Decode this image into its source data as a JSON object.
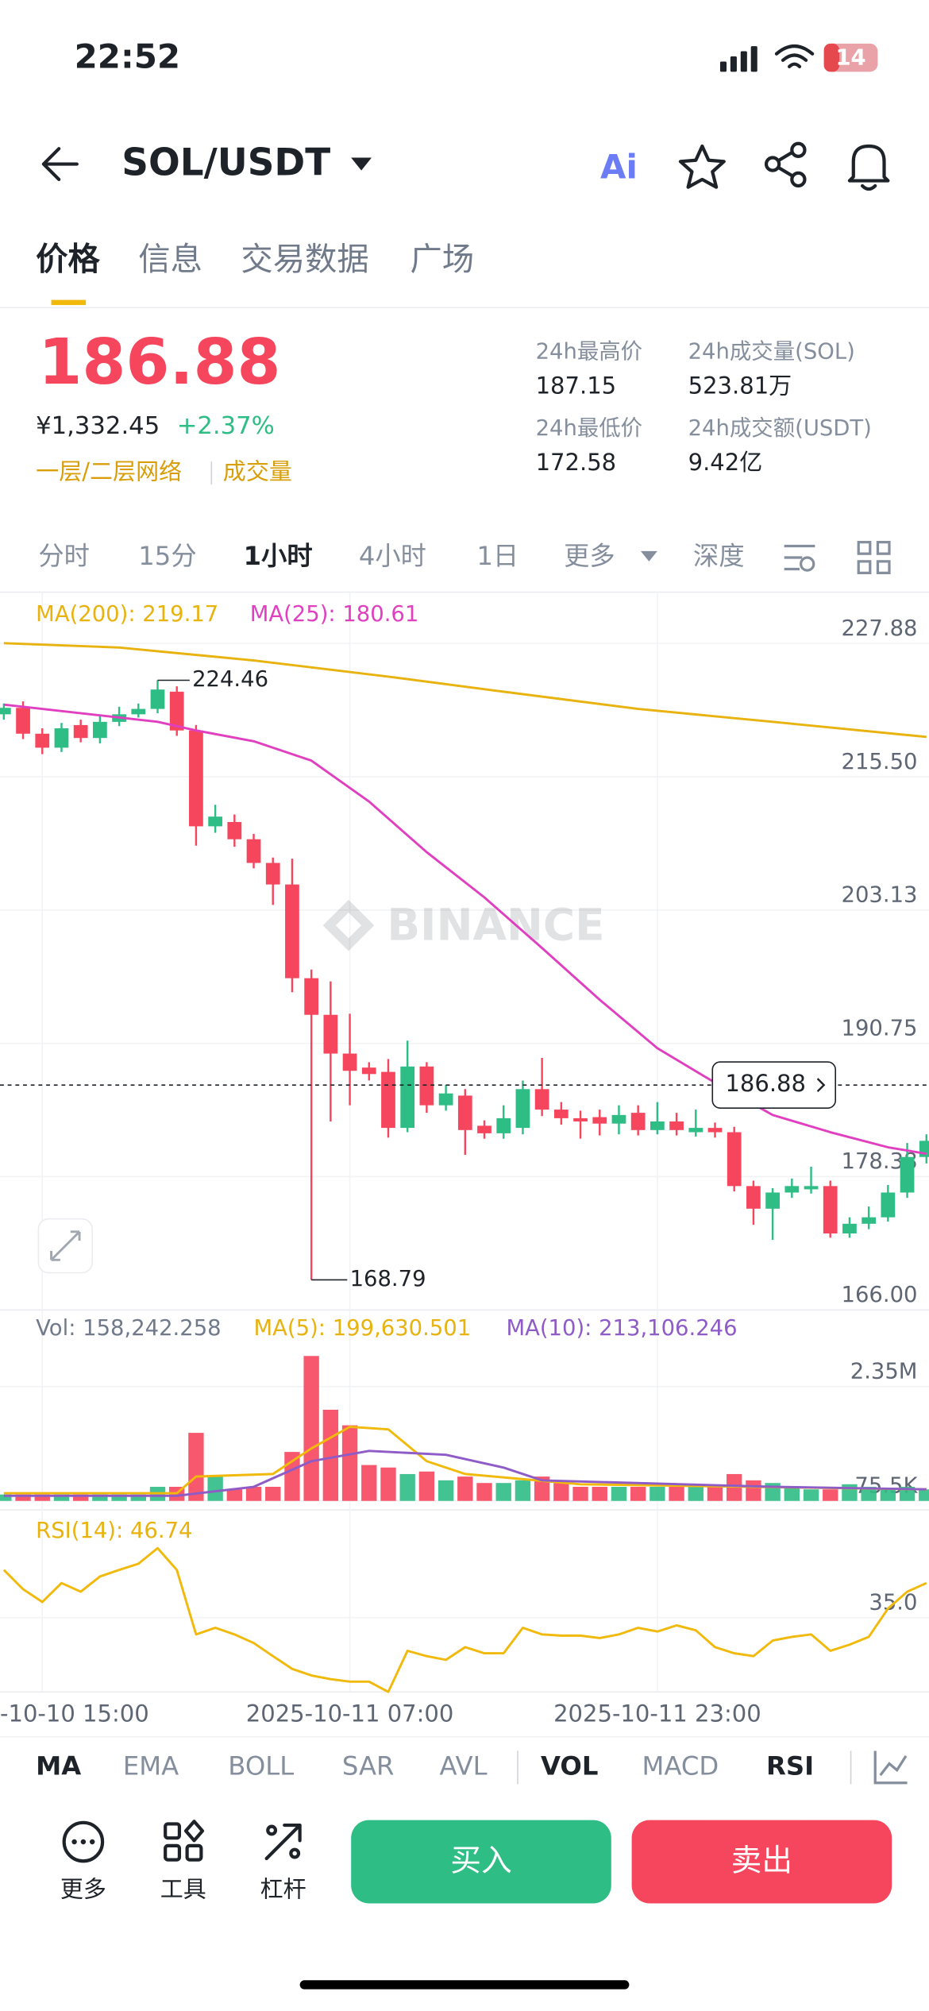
{
  "status_bar": {
    "time": "22:52",
    "battery": "14"
  },
  "nav": {
    "pair": "SOL/USDT"
  },
  "tabs": [
    "价格",
    "信息",
    "交易数据",
    "广场"
  ],
  "ticker": {
    "price": "186.88",
    "cny": "¥1,332.45",
    "change": "+2.37%",
    "tag1": "一层/二层网络",
    "tag2": "成交量",
    "stats": [
      {
        "label": "24h最高价",
        "value": "187.15"
      },
      {
        "label": "24h成交量(SOL)",
        "value": "523.81万"
      },
      {
        "label": "24h最低价",
        "value": "172.58"
      },
      {
        "label": "24h成交额(USDT)",
        "value": "9.42亿"
      }
    ]
  },
  "intervals": [
    "分时",
    "15分",
    "1小时",
    "4小时",
    "1日",
    "更多",
    "深度"
  ],
  "chart_data": {
    "type": "candlestick",
    "watermark": "BINANCE",
    "legend": {
      "ma200": "MA(200): 219.17",
      "ma25": "MA(25): 180.61",
      "vol": "Vol: 158,242.258",
      "vma5": "MA(5): 199,630.501",
      "vma10": "MA(10): 213,106.246",
      "rsi": "RSI(14): 46.74"
    },
    "current_price": 186.88,
    "ylim": [
      166,
      232.64
    ],
    "yticks": [
      227.88,
      {
        "value": 215.5,
        "label": "215.50"
      },
      203.13,
      190.75,
      178.38,
      {
        "value": 166,
        "label": "166.00"
      }
    ],
    "xticks": [
      {
        "value": 2,
        "label": "-10-10 15:00"
      },
      {
        "value": 18,
        "label": "2025-10-11 07:00"
      },
      {
        "value": 34,
        "label": "2025-10-11 23:00"
      }
    ],
    "up_color": "#2ebd85",
    "down_color": "#f6465d",
    "candles": [
      [
        221.3,
        222.3,
        220.8,
        221.9
      ],
      [
        221.9,
        222.5,
        219.0,
        219.5
      ],
      [
        219.5,
        220.0,
        217.6,
        218.2
      ],
      [
        218.2,
        220.5,
        217.8,
        220.0
      ],
      [
        220.3,
        220.8,
        218.7,
        219.1
      ],
      [
        219.1,
        221.3,
        218.6,
        220.6
      ],
      [
        220.6,
        222.0,
        220.2,
        221.3
      ],
      [
        221.3,
        222.3,
        221.0,
        221.8
      ],
      [
        221.8,
        224.46,
        221.4,
        223.6
      ],
      [
        223.4,
        223.9,
        219.3,
        219.8
      ],
      [
        219.8,
        220.3,
        209.1,
        210.9
      ],
      [
        210.9,
        212.9,
        210.3,
        211.8
      ],
      [
        211.3,
        212.0,
        209.0,
        209.7
      ],
      [
        209.7,
        210.2,
        207.0,
        207.5
      ],
      [
        207.5,
        208.0,
        203.6,
        205.5
      ],
      [
        205.5,
        207.9,
        195.5,
        196.8
      ],
      [
        196.8,
        197.6,
        168.79,
        193.4
      ],
      [
        193.4,
        196.5,
        183.5,
        189.8
      ],
      [
        189.8,
        193.5,
        185.0,
        188.2
      ],
      [
        188.5,
        189.0,
        187.3,
        187.9
      ],
      [
        188.1,
        189.3,
        182.0,
        182.9
      ],
      [
        182.9,
        191.0,
        182.5,
        188.6
      ],
      [
        188.6,
        189.0,
        184.3,
        185.0
      ],
      [
        185.0,
        186.9,
        184.5,
        186.1
      ],
      [
        185.9,
        186.5,
        180.4,
        182.7
      ],
      [
        183.1,
        183.6,
        181.9,
        182.4
      ],
      [
        182.4,
        185.0,
        181.9,
        183.8
      ],
      [
        182.9,
        187.3,
        182.3,
        186.5
      ],
      [
        186.5,
        189.4,
        184.0,
        184.6
      ],
      [
        184.6,
        185.3,
        183.2,
        183.8
      ],
      [
        183.8,
        184.5,
        181.9,
        183.5
      ],
      [
        183.9,
        184.6,
        182.2,
        183.3
      ],
      [
        183.3,
        185.0,
        182.3,
        184.1
      ],
      [
        184.3,
        185.0,
        182.2,
        182.7
      ],
      [
        182.7,
        185.3,
        182.3,
        183.5
      ],
      [
        183.5,
        184.3,
        182.2,
        182.7
      ],
      [
        182.5,
        184.6,
        182.1,
        182.9
      ],
      [
        182.9,
        183.4,
        182.0,
        182.5
      ],
      [
        182.5,
        183.0,
        177.0,
        177.5
      ],
      [
        177.5,
        178.0,
        173.9,
        175.4
      ],
      [
        175.4,
        177.3,
        172.5,
        176.9
      ],
      [
        176.9,
        178.2,
        176.4,
        177.5
      ],
      [
        177.2,
        179.3,
        176.8,
        177.5
      ],
      [
        177.5,
        178.0,
        172.7,
        173.1
      ],
      [
        173.1,
        174.6,
        172.7,
        174.0
      ],
      [
        174.0,
        175.6,
        173.5,
        174.6
      ],
      [
        174.6,
        177.6,
        174.2,
        176.9
      ],
      [
        176.9,
        181.5,
        176.4,
        180.2
      ],
      [
        180.2,
        182.3,
        179.6,
        181.7
      ]
    ],
    "ma200": {
      "color": "#e8b20f",
      "x": [
        0,
        6,
        13,
        20,
        26,
        33,
        40,
        48
      ],
      "values": [
        227.9,
        227.5,
        226.3,
        224.8,
        223.4,
        221.8,
        220.6,
        219.2
      ]
    },
    "ma25": {
      "color": "#e040c0",
      "x": [
        0,
        8,
        10,
        13,
        16,
        19,
        22,
        25,
        28,
        31,
        34,
        37,
        40,
        43,
        46,
        48
      ],
      "values": [
        222.2,
        220.6,
        219.8,
        218.8,
        217.0,
        213.2,
        208.5,
        204.3,
        199.6,
        194.8,
        190.3,
        187.1,
        184.1,
        182.5,
        181.1,
        180.5
      ]
    },
    "volume": {
      "ylim": [
        75500,
        3800000
      ],
      "yticks": [
        {
          "value": 2350000,
          "label": "2.35M"
        },
        {
          "value": 75500,
          "label": "75.5K"
        }
      ],
      "values": [
        203000,
        203000,
        203000,
        203000,
        203000,
        203000,
        203000,
        203000,
        356000,
        356000,
        1430000,
        560000,
        305000,
        356000,
        356000,
        1050000,
        2960000,
        1890000,
        1580000,
        790000,
        740000,
        610000,
        660000,
        485000,
        560000,
        432000,
        432000,
        485000,
        560000,
        432000,
        356000,
        356000,
        356000,
        356000,
        356000,
        356000,
        356000,
        356000,
        610000,
        485000,
        432000,
        356000,
        305000,
        305000,
        407000,
        356000,
        305000,
        356000,
        305000
      ],
      "ma5": {
        "color": "#f0b90b",
        "x": [
          0,
          9,
          10,
          14,
          16,
          18,
          20,
          22,
          24,
          30,
          48
        ],
        "values": [
          229000,
          229000,
          560000,
          611000,
          1120000,
          1550000,
          1500000,
          866000,
          611000,
          407000,
          305000
        ]
      },
      "ma10": {
        "color": "#8e5bc7",
        "x": [
          0,
          9,
          13,
          16,
          19,
          23,
          26,
          28,
          40,
          48
        ],
        "values": [
          178000,
          178000,
          356000,
          866000,
          1070000,
          994000,
          739000,
          484000,
          356000,
          305000
        ]
      }
    },
    "rsi": {
      "color": "#f0b90b",
      "ylim": [
        16.9,
        60.6
      ],
      "yticks": [
        {
          "value": 35,
          "label": "35.0"
        }
      ],
      "values": [
        46.6,
        41.9,
        38.8,
        43.4,
        41.3,
        45.0,
        46.6,
        48.1,
        51.9,
        46.6,
        30.9,
        32.5,
        30.9,
        28.8,
        25.6,
        22.5,
        20.9,
        20.0,
        19.4,
        19.4,
        16.9,
        26.9,
        25.6,
        24.7,
        27.8,
        26.3,
        26.3,
        32.5,
        30.9,
        30.6,
        30.6,
        30.0,
        30.9,
        32.5,
        31.6,
        33.1,
        31.9,
        27.8,
        26.3,
        25.6,
        29.4,
        30.3,
        30.9,
        26.9,
        28.4,
        30.3,
        37.2,
        41.3,
        43.4
      ]
    }
  },
  "indicators": [
    "MA",
    "EMA",
    "BOLL",
    "SAR",
    "AVL",
    "VOL",
    "MACD",
    "RSI"
  ],
  "actions": {
    "more": "更多",
    "tools": "工具",
    "leverage": "杠杆",
    "buy": "买入",
    "sell": "卖出"
  }
}
